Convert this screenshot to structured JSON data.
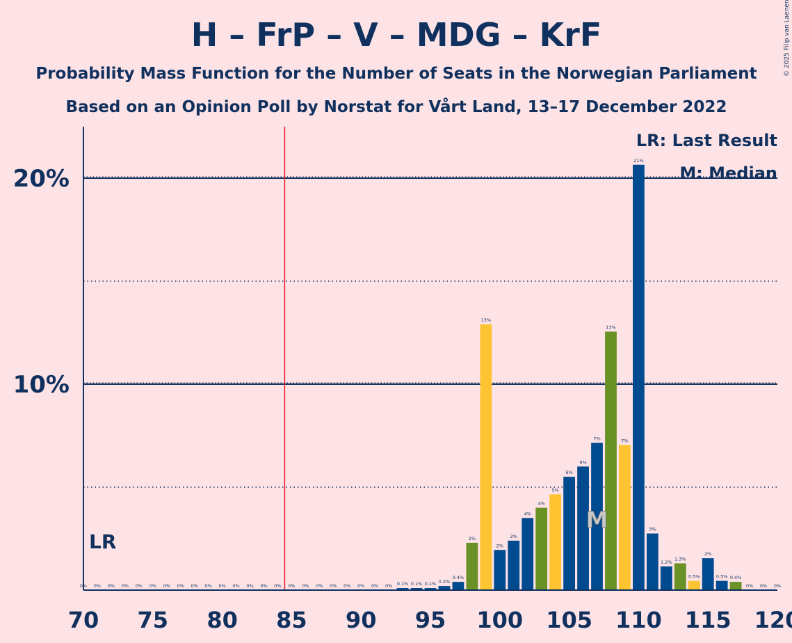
{
  "chart_data": {
    "type": "bar",
    "title": "H – FrP – V – MDG – KrF",
    "subtitle": "Probability Mass Function for the Number of Seats in the Norwegian Parliament",
    "subtitle2": "Based on an Opinion Poll by Norstat for Vårt Land, 13–17 December 2022",
    "copyright": "© 2025 Filip van Laenen",
    "legend": {
      "lr": "LR: Last Result",
      "median": "M: Median"
    },
    "last_result_label": "LR",
    "median_label": "M",
    "last_result_seat": 85,
    "median_seat": 107,
    "xlim": [
      70,
      120
    ],
    "ylim": [
      0,
      22.5
    ],
    "xticks": [
      70,
      75,
      80,
      85,
      90,
      95,
      100,
      105,
      110,
      115,
      120
    ],
    "yticks_major": [
      {
        "value": 10,
        "label": "10%"
      },
      {
        "value": 20,
        "label": "20%"
      }
    ],
    "yticks_minor": [
      5,
      15
    ],
    "colors": {
      "background": "#fde3e6",
      "axis": "#10305e",
      "lr_line": "#e31b23",
      "H": "#004a8f",
      "FrP": "#004a8f",
      "V": "#6a9126",
      "KrF": "#fec331",
      "median": "#004a8f"
    },
    "bars": [
      {
        "seat": 70,
        "value": 0,
        "label": "0%",
        "color": "#004a8f"
      },
      {
        "seat": 71,
        "value": 0,
        "label": "0%",
        "color": "#004a8f"
      },
      {
        "seat": 72,
        "value": 0,
        "label": "0%",
        "color": "#004a8f"
      },
      {
        "seat": 73,
        "value": 0,
        "label": "0%",
        "color": "#004a8f"
      },
      {
        "seat": 74,
        "value": 0,
        "label": "0%",
        "color": "#004a8f"
      },
      {
        "seat": 75,
        "value": 0,
        "label": "0%",
        "color": "#004a8f"
      },
      {
        "seat": 76,
        "value": 0,
        "label": "0%",
        "color": "#004a8f"
      },
      {
        "seat": 77,
        "value": 0,
        "label": "0%",
        "color": "#004a8f"
      },
      {
        "seat": 78,
        "value": 0,
        "label": "0%",
        "color": "#004a8f"
      },
      {
        "seat": 79,
        "value": 0,
        "label": "0%",
        "color": "#004a8f"
      },
      {
        "seat": 80,
        "value": 0,
        "label": "0%",
        "color": "#004a8f"
      },
      {
        "seat": 81,
        "value": 0,
        "label": "0%",
        "color": "#004a8f"
      },
      {
        "seat": 82,
        "value": 0,
        "label": "0%",
        "color": "#004a8f"
      },
      {
        "seat": 83,
        "value": 0,
        "label": "0%",
        "color": "#004a8f"
      },
      {
        "seat": 84,
        "value": 0,
        "label": "0%",
        "color": "#004a8f"
      },
      {
        "seat": 85,
        "value": 0,
        "label": "0%",
        "color": "#004a8f"
      },
      {
        "seat": 86,
        "value": 0,
        "label": "0%",
        "color": "#004a8f"
      },
      {
        "seat": 87,
        "value": 0,
        "label": "0%",
        "color": "#004a8f"
      },
      {
        "seat": 88,
        "value": 0,
        "label": "0%",
        "color": "#004a8f"
      },
      {
        "seat": 89,
        "value": 0,
        "label": "0%",
        "color": "#004a8f"
      },
      {
        "seat": 90,
        "value": 0,
        "label": "0%",
        "color": "#004a8f"
      },
      {
        "seat": 91,
        "value": 0,
        "label": "0%",
        "color": "#004a8f"
      },
      {
        "seat": 92,
        "value": 0,
        "label": "0%",
        "color": "#004a8f"
      },
      {
        "seat": 93,
        "value": 0.1,
        "label": "0.1%",
        "color": "#004a8f"
      },
      {
        "seat": 94,
        "value": 0.1,
        "label": "0.1%",
        "color": "#004a8f"
      },
      {
        "seat": 95,
        "value": 0.1,
        "label": "0.1%",
        "color": "#004a8f"
      },
      {
        "seat": 96,
        "value": 0.2,
        "label": "0.2%",
        "color": "#004a8f"
      },
      {
        "seat": 97,
        "value": 0.4,
        "label": "0.4%",
        "color": "#004a8f"
      },
      {
        "seat": 98,
        "value": 2.3,
        "label": "2%",
        "color": "#6a9126"
      },
      {
        "seat": 99,
        "value": 12.9,
        "label": "13%",
        "color": "#fec331"
      },
      {
        "seat": 100,
        "value": 1.95,
        "label": "2%",
        "color": "#004a8f"
      },
      {
        "seat": 101,
        "value": 2.4,
        "label": "2%",
        "color": "#004a8f"
      },
      {
        "seat": 102,
        "value": 3.5,
        "label": "4%",
        "color": "#004a8f"
      },
      {
        "seat": 103,
        "value": 4.0,
        "label": "4%",
        "color": "#6a9126"
      },
      {
        "seat": 104,
        "value": 4.65,
        "label": "5%",
        "color": "#fec331"
      },
      {
        "seat": 105,
        "value": 5.5,
        "label": "6%",
        "color": "#004a8f"
      },
      {
        "seat": 106,
        "value": 6.0,
        "label": "6%",
        "color": "#004a8f"
      },
      {
        "seat": 107,
        "value": 7.15,
        "label": "7%",
        "color": "#004a8f"
      },
      {
        "seat": 108,
        "value": 12.55,
        "label": "13%",
        "color": "#6a9126"
      },
      {
        "seat": 109,
        "value": 7.05,
        "label": "7%",
        "color": "#fec331"
      },
      {
        "seat": 110,
        "value": 20.65,
        "label": "21%",
        "color": "#004a8f"
      },
      {
        "seat": 111,
        "value": 2.75,
        "label": "3%",
        "color": "#004a8f"
      },
      {
        "seat": 112,
        "value": 1.15,
        "label": "1.2%",
        "color": "#004a8f"
      },
      {
        "seat": 113,
        "value": 1.3,
        "label": "1.3%",
        "color": "#6a9126"
      },
      {
        "seat": 114,
        "value": 0.45,
        "label": "0.5%",
        "color": "#fec331"
      },
      {
        "seat": 115,
        "value": 1.55,
        "label": "2%",
        "color": "#004a8f"
      },
      {
        "seat": 116,
        "value": 0.45,
        "label": "0.5%",
        "color": "#004a8f"
      },
      {
        "seat": 117,
        "value": 0.4,
        "label": "0.4%",
        "color": "#6a9126"
      },
      {
        "seat": 118,
        "value": 0,
        "label": "0%",
        "color": "#004a8f"
      },
      {
        "seat": 119,
        "value": 0,
        "label": "0%",
        "color": "#004a8f"
      },
      {
        "seat": 120,
        "value": 0,
        "label": "0%",
        "color": "#004a8f"
      }
    ]
  }
}
